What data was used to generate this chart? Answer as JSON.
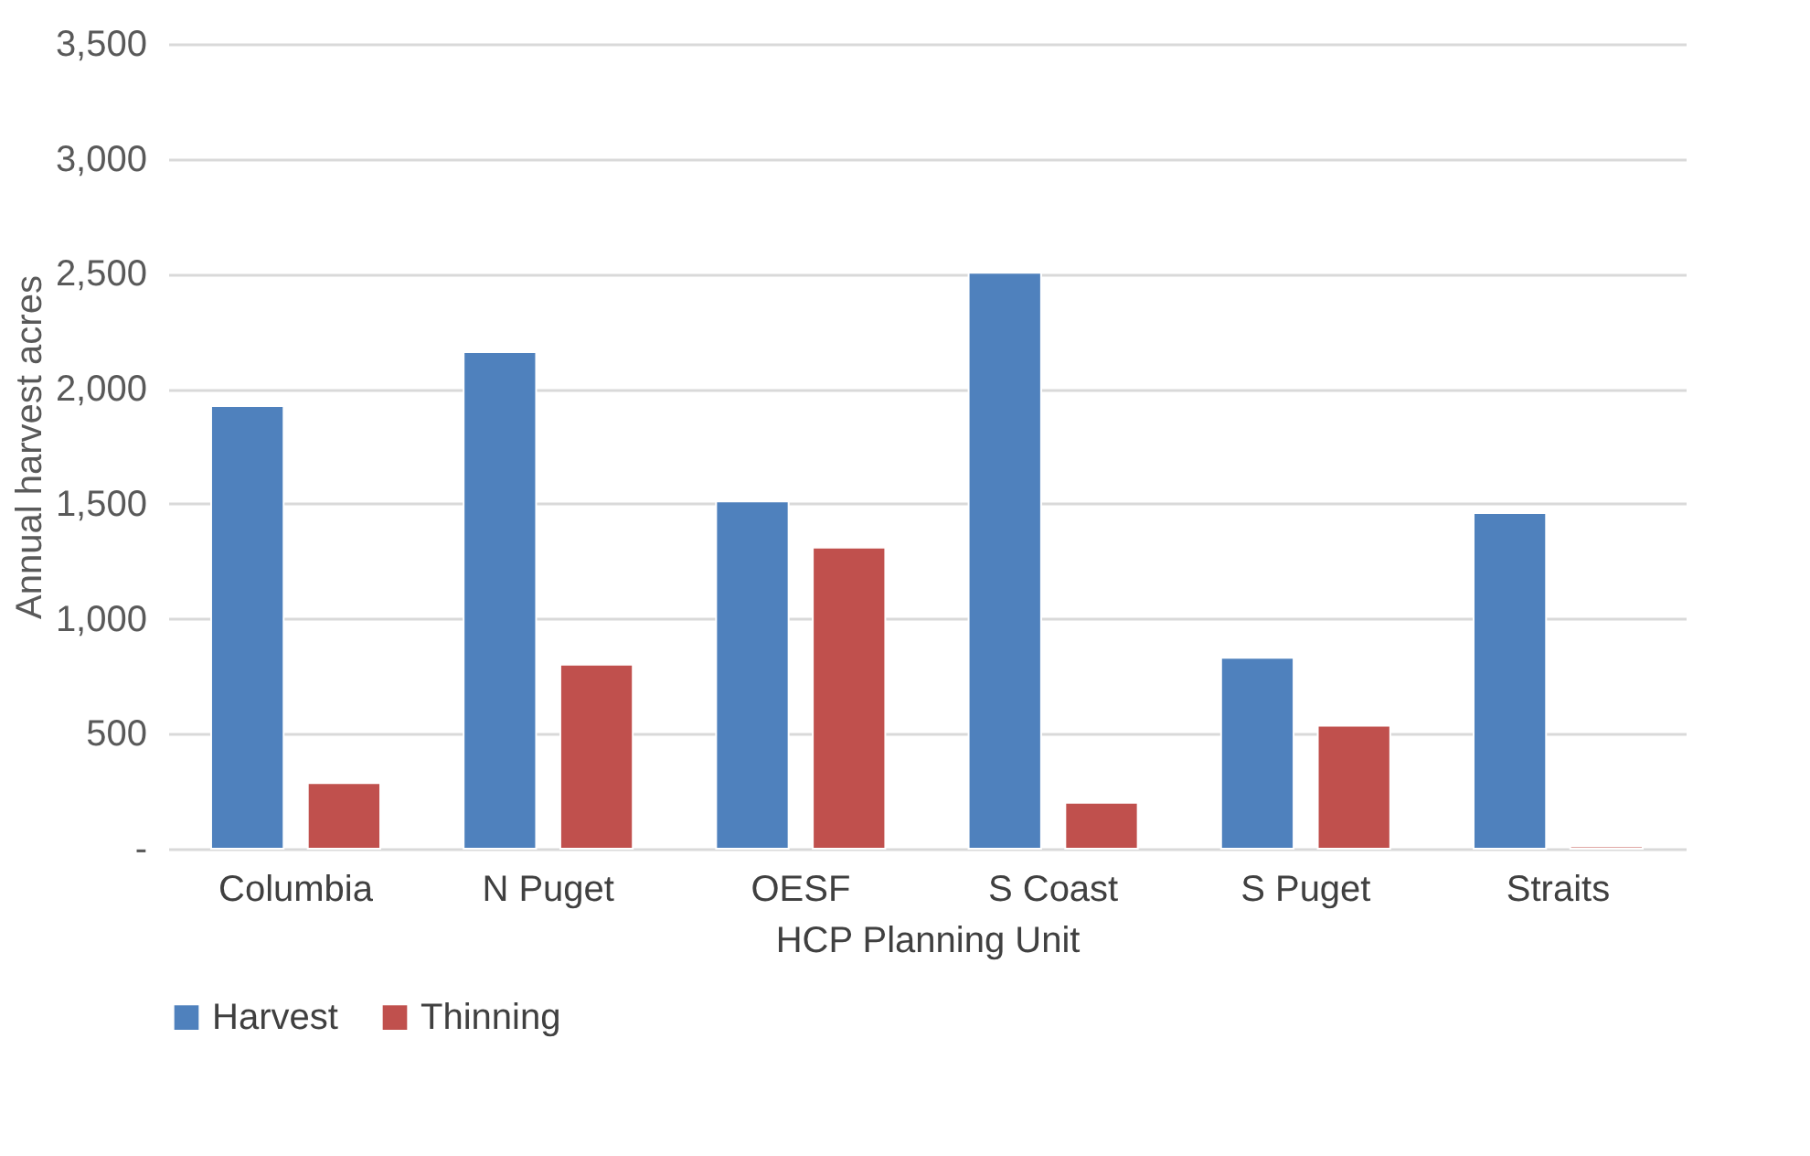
{
  "chart_data": {
    "type": "bar",
    "xlabel": "HCP Planning Unit",
    "ylabel": "Annual harvest acres",
    "categories": [
      "Columbia",
      "N Puget",
      "OESF",
      "S Coast",
      "S Puget",
      "Straits"
    ],
    "series": [
      {
        "name": "Harvest",
        "color": "#4f81bd",
        "values": [
          1925,
          2160,
          1510,
          2505,
          830,
          1460
        ]
      },
      {
        "name": "Thinning",
        "color": "#c0504d",
        "values": [
          285,
          800,
          1310,
          200,
          535,
          10
        ]
      }
    ],
    "ylim": [
      0,
      3500
    ],
    "yticks": [
      {
        "value": 0,
        "label": "-"
      },
      {
        "value": 500,
        "label": "500"
      },
      {
        "value": 1000,
        "label": "1,000"
      },
      {
        "value": 1500,
        "label": "1,500"
      },
      {
        "value": 2000,
        "label": "2,000"
      },
      {
        "value": 2500,
        "label": "2,500"
      },
      {
        "value": 3000,
        "label": "3,000"
      },
      {
        "value": 3500,
        "label": "3,500"
      }
    ],
    "grid": "y",
    "legend": "bottom"
  }
}
